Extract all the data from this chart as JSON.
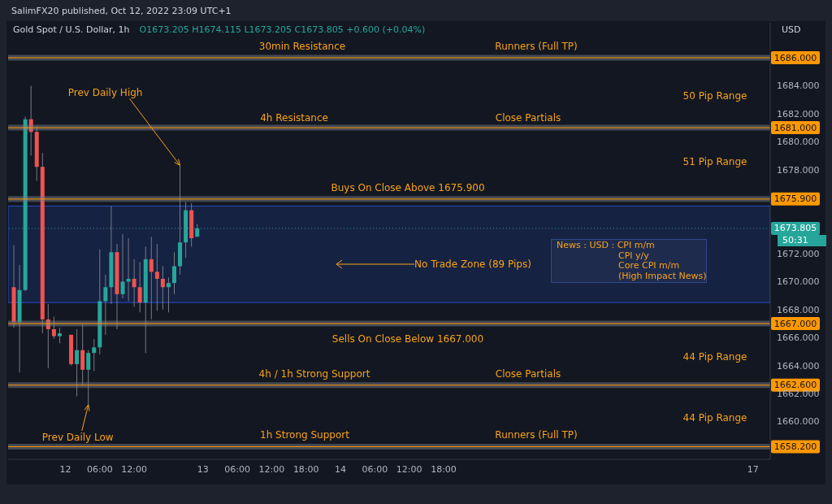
{
  "chart_data": {
    "type": "candlestick",
    "title": "Gold Spot / U.S. Dollar, 1h",
    "subtitle": "O1673.205 H1674.115 L1673.205 C1673.805 +0.600 (+0.04%)",
    "ylabel": "USD",
    "x": [
      "2022-10-11T15:00",
      "2022-10-11T16:00",
      "2022-10-11T17:00",
      "2022-10-11T18:00",
      "2022-10-11T19:00",
      "2022-10-11T20:00",
      "2022-10-11T21:00",
      "2022-10-11T22:00",
      "2022-10-11T23:00",
      "2022-10-12T01:00",
      "2022-10-12T02:00",
      "2022-10-12T03:00",
      "2022-10-12T04:00",
      "2022-10-12T05:00",
      "2022-10-12T06:00",
      "2022-10-12T07:00",
      "2022-10-12T08:00",
      "2022-10-12T09:00",
      "2022-10-12T10:00",
      "2022-10-12T11:00",
      "2022-10-12T12:00",
      "2022-10-12T13:00",
      "2022-10-12T14:00",
      "2022-10-12T15:00",
      "2022-10-12T16:00",
      "2022-10-12T17:00",
      "2022-10-12T18:00",
      "2022-10-12T19:00",
      "2022-10-12T20:00",
      "2022-10-12T21:00",
      "2022-10-12T22:00",
      "2022-10-12T23:00"
    ],
    "ohlc": [
      [
        1669.6,
        1672.6,
        1666.7,
        1667.1
      ],
      [
        1667.1,
        1671.2,
        1663.5,
        1669.4
      ],
      [
        1669.4,
        1681.8,
        1669.3,
        1681.6
      ],
      [
        1681.6,
        1684.0,
        1679.0,
        1680.7
      ],
      [
        1680.7,
        1681.1,
        1677.2,
        1678.2
      ],
      [
        1678.2,
        1679.2,
        1666.3,
        1667.3
      ],
      [
        1667.3,
        1668.4,
        1663.8,
        1666.6
      ],
      [
        1666.6,
        1667.5,
        1665.9,
        1666.1
      ],
      [
        1666.1,
        1666.7,
        1665.6,
        1666.3
      ],
      [
        1666.2,
        1666.2,
        1664.0,
        1664.1
      ],
      [
        1664.1,
        1666.6,
        1661.8,
        1665.1
      ],
      [
        1665.1,
        1667.0,
        1662.6,
        1663.7
      ],
      [
        1663.7,
        1665.1,
        1661.2,
        1664.9
      ],
      [
        1664.9,
        1665.9,
        1663.6,
        1665.3
      ],
      [
        1665.3,
        1672.3,
        1664.8,
        1668.6
      ],
      [
        1668.6,
        1670.5,
        1666.2,
        1669.6
      ],
      [
        1669.6,
        1675.4,
        1668.4,
        1672.1
      ],
      [
        1672.1,
        1672.7,
        1666.6,
        1669.1
      ],
      [
        1669.1,
        1673.4,
        1668.8,
        1670.0
      ],
      [
        1670.0,
        1673.1,
        1668.6,
        1670.2
      ],
      [
        1670.2,
        1671.6,
        1668.2,
        1669.6
      ],
      [
        1669.6,
        1671.4,
        1667.8,
        1668.5
      ],
      [
        1668.5,
        1672.5,
        1664.9,
        1671.6
      ],
      [
        1671.6,
        1673.2,
        1667.3,
        1670.7
      ],
      [
        1670.7,
        1672.7,
        1667.9,
        1670.2
      ],
      [
        1670.2,
        1671.1,
        1668.0,
        1669.6
      ],
      [
        1669.6,
        1670.3,
        1667.8,
        1669.9
      ],
      [
        1669.9,
        1672.1,
        1669.1,
        1671.1
      ],
      [
        1671.1,
        1678.3,
        1670.5,
        1672.8
      ],
      [
        1672.8,
        1675.7,
        1671.7,
        1675.1
      ],
      [
        1675.1,
        1675.6,
        1672.5,
        1673.1
      ],
      [
        1673.205,
        1674.115,
        1673.205,
        1673.805
      ]
    ],
    "colors": [
      "#ef5350",
      "#26a69a",
      "#26a69a",
      "#ef5350",
      "#ef5350",
      "#ef5350",
      "#ef5350",
      "#ef5350",
      "#26a69a",
      "#ef5350",
      "#26a69a",
      "#ef5350",
      "#26a69a",
      "#26a69a",
      "#26a69a",
      "#26a69a",
      "#26a69a",
      "#ef5350",
      "#26a69a",
      "#26a69a",
      "#ef5350",
      "#ef5350",
      "#26a69a",
      "#ef5350",
      "#ef5350",
      "#ef5350",
      "#26a69a",
      "#26a69a",
      "#26a69a",
      "#26a69a",
      "#ef5350",
      "#26a69a"
    ],
    "xlim": [
      "2022-10-11T14:00",
      "2022-10-17T03:00"
    ],
    "xticks": [
      {
        "value": "2022-10-12",
        "label": "12"
      },
      {
        "value": "2022-10-12T06:00",
        "label": "06:00"
      },
      {
        "value": "2022-10-12T12:00",
        "label": "12:00"
      },
      {
        "value": "2022-10-13",
        "label": "13"
      },
      {
        "value": "2022-10-13T06:00",
        "label": "06:00"
      },
      {
        "value": "2022-10-13T12:00",
        "label": "12:00"
      },
      {
        "value": "2022-10-13T18:00",
        "label": "18:00"
      },
      {
        "value": "2022-10-14",
        "label": "14"
      },
      {
        "value": "2022-10-14T06:00",
        "label": "06:00"
      },
      {
        "value": "2022-10-14T12:00",
        "label": "12:00"
      },
      {
        "value": "2022-10-14T18:00",
        "label": "18:00"
      },
      {
        "value": "2022-10-17",
        "label": "17"
      }
    ],
    "ylim": [
      1657.3,
      1688.5
    ],
    "yticks": [
      {
        "value": 1660,
        "label": "1660.000"
      },
      {
        "value": 1662,
        "label": "1662.000"
      },
      {
        "value": 1664,
        "label": "1664.000"
      },
      {
        "value": 1666,
        "label": "1666.000"
      },
      {
        "value": 1668,
        "label": "1668.000"
      },
      {
        "value": 1670,
        "label": "1670.000"
      },
      {
        "value": 1672,
        "label": "1672.000"
      },
      {
        "value": 1678,
        "label": "1678.000"
      },
      {
        "value": 1680,
        "label": "1680.000"
      },
      {
        "value": 1682,
        "label": "1682.000"
      },
      {
        "value": 1684,
        "label": "1684.000"
      }
    ],
    "ref_lines": [
      {
        "axis": "y",
        "value": 1686,
        "label": "1686.000",
        "color": "#ff9800"
      },
      {
        "axis": "y",
        "value": 1681,
        "label": "1681.000",
        "color": "#ff9800"
      },
      {
        "axis": "y",
        "value": 1675.9,
        "label": "1675.900",
        "color": "#ff9800"
      },
      {
        "axis": "y",
        "value": 1667,
        "label": "1667.000",
        "color": "#ff9800"
      },
      {
        "axis": "y",
        "value": 1662.6,
        "label": "1662.600",
        "color": "#ff9800"
      },
      {
        "axis": "y",
        "value": 1658.2,
        "label": "1658.200",
        "color": "#ff9800"
      },
      {
        "axis": "y",
        "value": 1673.805,
        "label": "1673.805",
        "color": "#26a69a",
        "line_style": "dotted"
      }
    ],
    "bands": [
      {
        "axis": "y",
        "from": 1668.5,
        "to": 1675.4,
        "color": "#2962ff"
      }
    ],
    "annotations": [
      "SalimFX20 published, Oct 12, 2022 23:09 UTC+1",
      "News : USD : CPI m/m\nCPI y/y\nCore CPI m/m\n(High Impact News)",
      "50:31",
      {
        "text": "Prev Daily High",
        "x": "2022-10-12T20:00",
        "y": 1678.3
      },
      {
        "text": "Prev Daily Low",
        "x": "2022-10-12T04:00",
        "y": 1661.2
      },
      "No Trade Zone (89 Pips)",
      "30min Resistance",
      "Runners (Full TP)",
      "50 Pip Range",
      "4h Resistance",
      "Close Partials",
      "51 Pip Range",
      "Buys On Close Above 1675.900",
      "Sells On Close Below 1667.000",
      "44 Pip Range",
      "4h / 1h Strong Support",
      "Close Partials",
      "44 Pip Range",
      "1h Strong Support",
      "Runners (Full TP)"
    ]
  }
}
